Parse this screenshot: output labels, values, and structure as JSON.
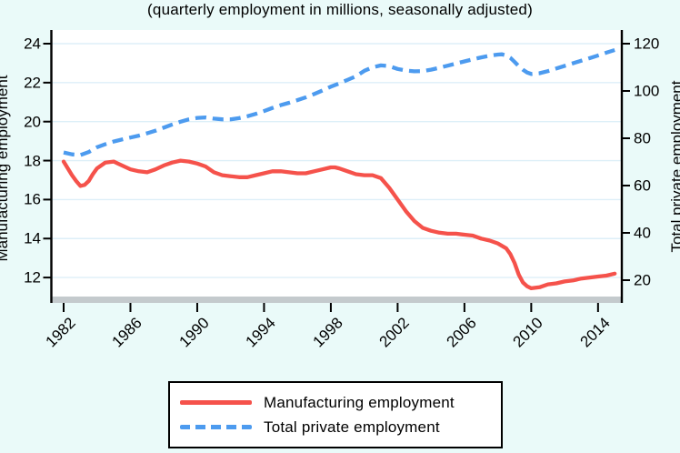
{
  "figure": {
    "background_color": "#eafaf9",
    "plot_background_color": "#ffffff",
    "gridline_color": "#ddeff8",
    "axis_line_color": "#000000",
    "bottom_axis_band_color": "#c4cacd"
  },
  "chart_data": {
    "type": "line",
    "title": "(quarterly employment in millions, seasonally adjusted)",
    "x_axis": {
      "tick_labels": [
        "1982",
        "1986",
        "1990",
        "1994",
        "1998",
        "2002",
        "2006",
        "2010",
        "2014"
      ],
      "tick_values": [
        1982,
        1986,
        1990,
        1994,
        1998,
        2002,
        2006,
        2010,
        2014
      ],
      "range": [
        1981.3,
        2015.4
      ],
      "tick_label_angle_deg": 45
    },
    "y_axis_left": {
      "title": "Manufacturing employment",
      "tick_values": [
        24,
        22,
        20,
        18,
        16,
        14,
        12
      ],
      "range": [
        11.0,
        24.7
      ],
      "gridlines": true
    },
    "y_axis_right": {
      "title": "Total private employment",
      "tick_values": [
        120,
        100,
        80,
        60,
        40,
        20
      ],
      "range": [
        13.1,
        125.8
      ],
      "gridlines": false
    },
    "legend": {
      "position": "bottom-center",
      "entries": [
        {
          "label": "Manufacturing employment",
          "color": "#f5524b",
          "line_style": "solid"
        },
        {
          "label": "Total private employment",
          "color": "#4d9bef",
          "line_style": "dashed"
        }
      ]
    },
    "series": [
      {
        "name": "Manufacturing employment",
        "axis": "left",
        "color": "#f5524b",
        "line_style": "solid",
        "x": [
          1982,
          1982.25,
          1982.5,
          1982.75,
          1983,
          1983.25,
          1983.5,
          1983.75,
          1984,
          1984.5,
          1985,
          1985.25,
          1985.5,
          1986,
          1986.5,
          1987,
          1987.5,
          1988,
          1988.5,
          1989,
          1989.5,
          1990,
          1990.5,
          1991,
          1991.5,
          1992,
          1992.5,
          1993,
          1993.5,
          1994,
          1994.5,
          1995,
          1995.5,
          1996,
          1996.5,
          1997,
          1997.5,
          1998,
          1998.25,
          1998.5,
          1999,
          1999.5,
          2000,
          2000.5,
          2001,
          2001.5,
          2002,
          2002.5,
          2003,
          2003.5,
          2004,
          2004.5,
          2005,
          2005.5,
          2006,
          2006.5,
          2007,
          2007.5,
          2008,
          2008.5,
          2008.75,
          2009,
          2009.25,
          2009.5,
          2009.75,
          2010,
          2010.5,
          2011,
          2011.5,
          2012,
          2012.5,
          2013,
          2013.5,
          2014,
          2014.5,
          2015
        ],
        "y": [
          17.95,
          17.6,
          17.25,
          16.95,
          16.7,
          16.75,
          16.95,
          17.3,
          17.6,
          17.9,
          17.95,
          17.85,
          17.75,
          17.55,
          17.45,
          17.4,
          17.55,
          17.75,
          17.9,
          18.0,
          17.95,
          17.85,
          17.7,
          17.4,
          17.25,
          17.2,
          17.15,
          17.15,
          17.25,
          17.35,
          17.45,
          17.45,
          17.4,
          17.35,
          17.35,
          17.45,
          17.55,
          17.65,
          17.65,
          17.6,
          17.45,
          17.3,
          17.25,
          17.25,
          17.1,
          16.6,
          16.0,
          15.4,
          14.9,
          14.55,
          14.4,
          14.3,
          14.25,
          14.25,
          14.2,
          14.15,
          14.0,
          13.9,
          13.75,
          13.5,
          13.2,
          12.75,
          12.15,
          11.75,
          11.55,
          11.45,
          11.5,
          11.65,
          11.7,
          11.8,
          11.85,
          11.95,
          12.0,
          12.05,
          12.1,
          12.2
        ]
      },
      {
        "name": "Total private employment",
        "axis": "right",
        "color": "#4d9bef",
        "line_style": "dashed",
        "x": [
          1982,
          1982.5,
          1983,
          1983.5,
          1984,
          1984.5,
          1985,
          1985.5,
          1986,
          1986.5,
          1987,
          1987.5,
          1988,
          1988.5,
          1989,
          1989.5,
          1990,
          1990.5,
          1991,
          1991.5,
          1992,
          1992.5,
          1993,
          1993.5,
          1994,
          1994.5,
          1995,
          1995.5,
          1996,
          1996.5,
          1997,
          1997.5,
          1998,
          1998.5,
          1999,
          1999.5,
          2000,
          2000.5,
          2001,
          2001.5,
          2002,
          2002.5,
          2003,
          2003.5,
          2004,
          2004.5,
          2005,
          2005.5,
          2006,
          2006.5,
          2007,
          2007.5,
          2008,
          2008.25,
          2008.5,
          2008.75,
          2009,
          2009.25,
          2009.5,
          2009.75,
          2010,
          2010.5,
          2011,
          2011.5,
          2012,
          2012.5,
          2013,
          2013.5,
          2014,
          2014.5,
          2015
        ],
        "y": [
          74.0,
          73.2,
          72.9,
          74.2,
          76.2,
          77.5,
          78.6,
          79.5,
          80.3,
          81.1,
          82.1,
          83.2,
          84.5,
          85.8,
          87.0,
          88.0,
          88.6,
          88.8,
          88.3,
          88.0,
          88.0,
          88.5,
          89.3,
          90.3,
          91.5,
          92.8,
          94.0,
          95.0,
          96.1,
          97.3,
          98.7,
          100.2,
          101.8,
          103.2,
          104.7,
          106.2,
          108.5,
          110.0,
          110.8,
          110.5,
          109.3,
          108.6,
          108.3,
          108.4,
          109.0,
          109.8,
          110.7,
          111.6,
          112.5,
          113.4,
          114.2,
          114.9,
          115.4,
          115.5,
          115.0,
          114.0,
          112.3,
          110.5,
          109.0,
          107.8,
          107.2,
          107.5,
          108.4,
          109.5,
          110.6,
          111.7,
          112.8,
          113.9,
          115.0,
          116.2,
          117.3
        ]
      }
    ]
  }
}
